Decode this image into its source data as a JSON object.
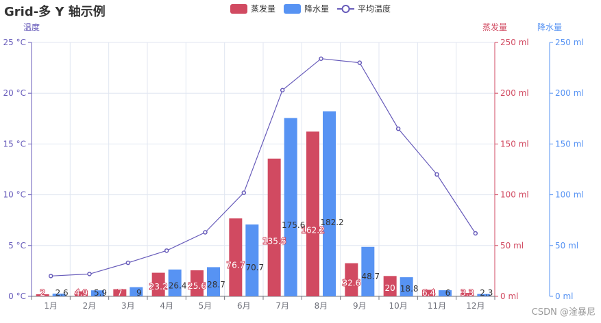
{
  "title": "Grid-多 Y 轴示例",
  "watermark": "CSDN @淦暴尼",
  "chart_data": {
    "type": "bar",
    "title": "Grid-多 Y 轴示例",
    "categories": [
      "1月",
      "2月",
      "3月",
      "4月",
      "5月",
      "6月",
      "7月",
      "8月",
      "9月",
      "10月",
      "11月",
      "12月"
    ],
    "series": [
      {
        "name": "蒸发量",
        "type": "bar",
        "yAxis": "evaporation",
        "color": "#d14a61",
        "values": [
          2,
          4.9,
          7,
          23.2,
          25.6,
          76.7,
          135.6,
          162.2,
          32.6,
          20,
          6.4,
          3.3
        ]
      },
      {
        "name": "降水量",
        "type": "bar",
        "yAxis": "precipitation",
        "color": "#5793f3",
        "values": [
          2.6,
          5.9,
          9,
          26.4,
          28.7,
          70.7,
          175.6,
          182.2,
          48.7,
          18.8,
          6,
          2.3
        ]
      },
      {
        "name": "平均温度",
        "type": "line",
        "yAxis": "temperature",
        "color": "#675bba",
        "values": [
          2.0,
          2.2,
          3.3,
          4.5,
          6.3,
          10.2,
          20.3,
          23.4,
          23.0,
          16.5,
          12.0,
          6.2
        ]
      }
    ],
    "yAxes": [
      {
        "id": "temperature",
        "name": "温度",
        "position": "left",
        "color": "#675bba",
        "unit": "°C",
        "min": 0,
        "max": 25,
        "ticks": [
          "0 °C",
          "5 °C",
          "10 °C",
          "15 °C",
          "20 °C",
          "25 °C"
        ]
      },
      {
        "id": "evaporation",
        "name": "蒸发量",
        "position": "right",
        "color": "#d14a61",
        "unit": "ml",
        "min": 0,
        "max": 250,
        "ticks": [
          "0 ml",
          "50 ml",
          "100 ml",
          "150 ml",
          "200 ml",
          "250 ml"
        ]
      },
      {
        "id": "precipitation",
        "name": "降水量",
        "position": "right-offset",
        "color": "#5793f3",
        "unit": "ml",
        "min": 0,
        "max": 250,
        "ticks": [
          "0 ml",
          "50 ml",
          "100 ml",
          "150 ml",
          "200 ml",
          "250 ml"
        ]
      }
    ],
    "legend": {
      "position": "top-center",
      "items": [
        "蒸发量",
        "降水量",
        "平均温度"
      ]
    },
    "grid": true
  }
}
